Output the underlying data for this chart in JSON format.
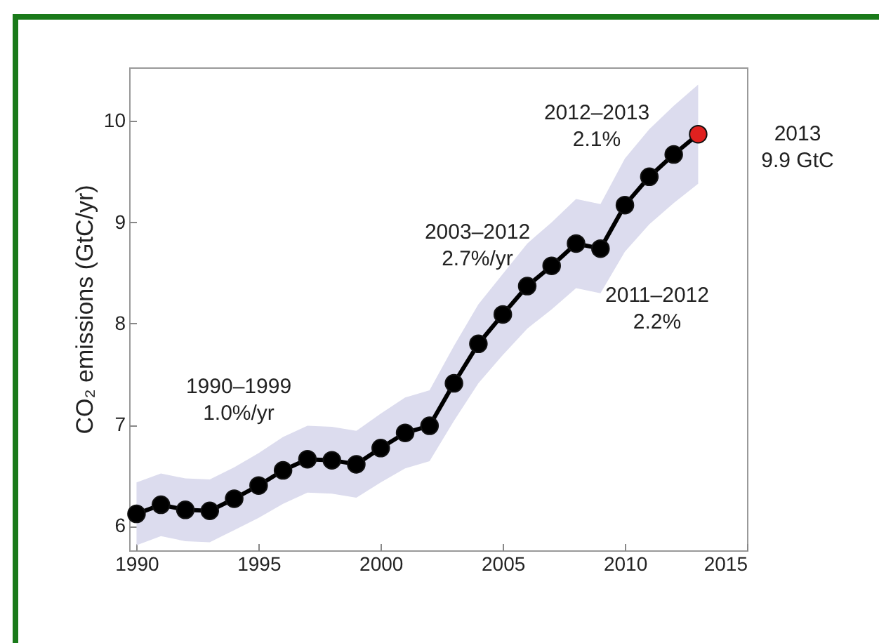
{
  "chart_data": {
    "type": "line",
    "ylabel": "CO₂ emissions (GtC/yr)",
    "x": [
      1990,
      1991,
      1992,
      1993,
      1994,
      1995,
      1996,
      1997,
      1998,
      1999,
      2000,
      2001,
      2002,
      2003,
      2004,
      2005,
      2006,
      2007,
      2008,
      2009,
      2010,
      2011,
      2012,
      2013
    ],
    "series": [
      {
        "color": "#000000",
        "colors": [
          "#000000",
          "#000000",
          "#000000",
          "#000000",
          "#000000",
          "#000000",
          "#000000",
          "#000000",
          "#000000",
          "#000000",
          "#000000",
          "#000000",
          "#000000",
          "#000000",
          "#000000",
          "#000000",
          "#000000",
          "#000000",
          "#000000",
          "#000000",
          "#000000",
          "#000000",
          "#000000",
          "#e0211f"
        ],
        "values": [
          6.12,
          6.21,
          6.16,
          6.15,
          6.27,
          6.4,
          6.55,
          6.66,
          6.65,
          6.61,
          6.77,
          6.92,
          6.99,
          7.41,
          7.8,
          8.09,
          8.37,
          8.57,
          8.79,
          8.74,
          9.17,
          9.45,
          9.67,
          9.87
        ],
        "lower": [
          5.81,
          5.9,
          5.85,
          5.84,
          5.96,
          6.08,
          6.22,
          6.33,
          6.32,
          6.28,
          6.43,
          6.57,
          6.64,
          7.04,
          7.41,
          7.69,
          7.95,
          8.14,
          8.35,
          8.3,
          8.71,
          8.98,
          9.19,
          9.38
        ],
        "upper": [
          6.43,
          6.52,
          6.47,
          6.46,
          6.58,
          6.72,
          6.88,
          6.99,
          6.98,
          6.94,
          7.11,
          7.27,
          7.34,
          7.78,
          8.19,
          8.49,
          8.79,
          9.0,
          9.23,
          9.18,
          9.63,
          9.92,
          10.15,
          10.36
        ]
      }
    ],
    "xlim": [
      1989.7,
      2015
    ],
    "ylim": [
      5.76,
      10.53
    ],
    "xticks": [
      1990,
      1995,
      2000,
      2005,
      2010,
      2015
    ],
    "yticks": [
      6,
      7,
      8,
      9,
      10
    ],
    "marker": "circle",
    "line_style": "solid",
    "grid": false,
    "annotations": [
      "1990–1999\n1.0%/yr",
      "2003–2012\n2.7%/yr",
      "2012–2013\n2.1%",
      "2011–2012\n2.2%",
      "2013\n9.9 GtC"
    ]
  }
}
